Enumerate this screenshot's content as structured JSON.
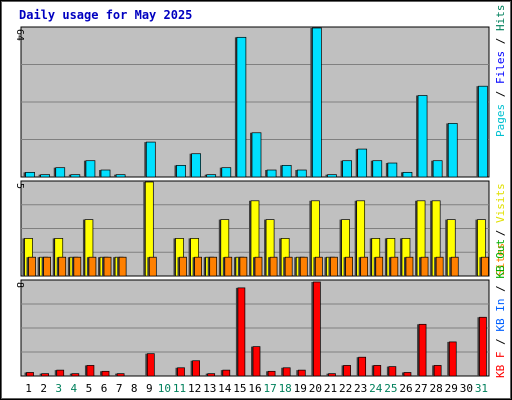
{
  "chart_data": [
    {
      "type": "bar",
      "title": "Daily usage for May 2025",
      "panel": "hits-files-pages",
      "ylim": [
        0,
        64
      ],
      "ytick_label": "64",
      "categories": [
        "1",
        "2",
        "3",
        "4",
        "5",
        "6",
        "7",
        "8",
        "9",
        "10",
        "11",
        "12",
        "13",
        "14",
        "15",
        "16",
        "17",
        "18",
        "19",
        "20",
        "21",
        "22",
        "23",
        "24",
        "25",
        "26",
        "27",
        "28",
        "29",
        "30",
        "31"
      ],
      "series": [
        {
          "name": "Hits",
          "color": "#00a0a0",
          "values": [
            2,
            1,
            4,
            1,
            7,
            3,
            1,
            0,
            15,
            0,
            5,
            10,
            1,
            4,
            60,
            19,
            3,
            5,
            3,
            64,
            1,
            7,
            12,
            7,
            6,
            2,
            35,
            7,
            23,
            0,
            39
          ]
        },
        {
          "name": "Files",
          "color": "#00a0a0",
          "values": [
            2,
            1,
            4,
            1,
            7,
            3,
            1,
            0,
            15,
            0,
            5,
            10,
            1,
            4,
            60,
            19,
            3,
            5,
            3,
            64,
            1,
            7,
            12,
            7,
            6,
            2,
            35,
            7,
            23,
            0,
            39
          ]
        },
        {
          "name": "Pages",
          "color": "#00e0ff",
          "values": [
            2,
            1,
            4,
            1,
            7,
            3,
            1,
            0,
            15,
            0,
            5,
            10,
            1,
            4,
            60,
            19,
            3,
            5,
            3,
            64,
            1,
            7,
            12,
            7,
            6,
            2,
            35,
            7,
            23,
            0,
            39
          ]
        }
      ],
      "legend": [
        {
          "text": "Hits",
          "color": "#00805c"
        },
        {
          "text": "Files",
          "color": "#0000ff"
        },
        {
          "text": "Pages",
          "color": "#00c0d0"
        }
      ]
    },
    {
      "type": "bar",
      "panel": "visits-sites",
      "ylim": [
        0,
        5
      ],
      "ytick_label": "5",
      "series": [
        {
          "name": "Visits",
          "color": "#ffff00",
          "values": [
            2,
            1,
            2,
            1,
            3,
            1,
            1,
            0,
            5,
            0,
            2,
            2,
            1,
            3,
            1,
            4,
            3,
            2,
            1,
            4,
            1,
            3,
            4,
            2,
            2,
            2,
            4,
            4,
            3,
            0,
            3
          ]
        },
        {
          "name": "Sites",
          "color": "#ff8000",
          "values": [
            1,
            1,
            1,
            1,
            1,
            1,
            1,
            0,
            1,
            0,
            1,
            1,
            1,
            1,
            1,
            1,
            1,
            1,
            1,
            1,
            1,
            1,
            1,
            1,
            1,
            1,
            1,
            1,
            1,
            0,
            1
          ]
        }
      ],
      "legend": [
        {
          "text": "Visits",
          "color": "#e0e000"
        },
        {
          "text": "Sites",
          "color": "#ff8000"
        }
      ]
    },
    {
      "type": "bar",
      "panel": "kbytes",
      "ylim": [
        0,
        8
      ],
      "ytick_label": "8",
      "series": [
        {
          "name": "KB F",
          "color": "#ff0000",
          "values": [
            0.3,
            0.2,
            0.5,
            0.2,
            0.9,
            0.4,
            0.2,
            0,
            1.9,
            0,
            0.7,
            1.3,
            0.2,
            0.5,
            7.5,
            2.5,
            0.4,
            0.7,
            0.5,
            8,
            0.2,
            0.9,
            1.6,
            0.9,
            0.8,
            0.3,
            4.4,
            0.9,
            2.9,
            0,
            5
          ]
        }
      ],
      "legend": [
        {
          "text": "KB F",
          "color": "#ff0000"
        },
        {
          "text": "KB In",
          "color": "#0060ff"
        },
        {
          "text": "KB Out",
          "color": "#00b000"
        }
      ]
    }
  ],
  "x_labels_highlighted": [
    "3",
    "4",
    "10",
    "11",
    "17",
    "18",
    "24",
    "25",
    "31"
  ]
}
